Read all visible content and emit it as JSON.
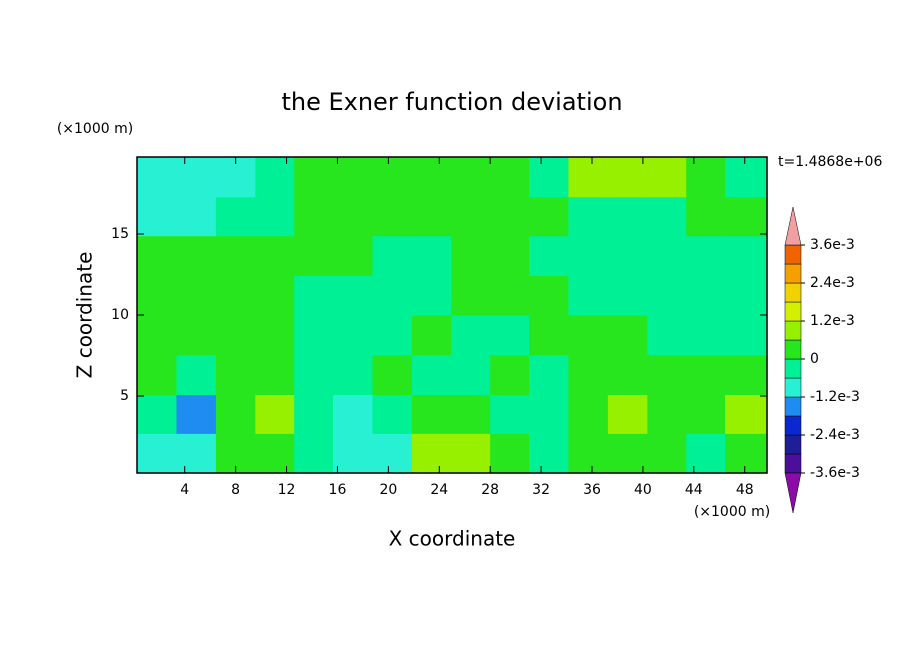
{
  "chart_data": {
    "type": "contour",
    "title": "the Exner function deviation",
    "x_label": "X coordinate",
    "y_label": "Z coordinate",
    "x_unit": "(×1000 m)",
    "y_unit": "(×1000 m)",
    "time_label": "t=1.4868e+06",
    "xlim": [
      0.25,
      49.75
    ],
    "ylim": [
      0.25,
      19.75
    ],
    "xticks": [
      4,
      8,
      12,
      16,
      20,
      24,
      28,
      32,
      36,
      40,
      44,
      48
    ],
    "yticks": [
      5,
      10,
      15
    ],
    "x": [
      1.8,
      4.9,
      8.0,
      11.1,
      14.1,
      17.2,
      20.3,
      23.4,
      26.5,
      29.5,
      32.6,
      35.7,
      38.8,
      41.9,
      44.9,
      48.0
    ],
    "y": [
      1.5,
      3.9,
      6.3,
      8.8,
      11.2,
      13.7,
      16.1,
      18.5
    ],
    "z": [
      [
        -0.0009,
        -0.0009,
        0.0003,
        0.0003,
        -0.0003,
        -0.0009,
        -0.0009,
        0.0009,
        0.0009,
        0.0003,
        -0.0003,
        0.0003,
        0.0003,
        0.0003,
        -0.0003,
        0.0003
      ],
      [
        -0.0003,
        -0.0015,
        0.0003,
        0.0009,
        -0.0003,
        -0.0009,
        -0.0003,
        0.0003,
        0.0003,
        -0.0003,
        -0.0003,
        0.0003,
        0.0009,
        0.0003,
        0.0003,
        0.0009
      ],
      [
        0.0003,
        -0.0003,
        0.0003,
        0.0003,
        -0.0003,
        -0.0003,
        0.0003,
        -0.0003,
        -0.0003,
        0.0003,
        -0.0003,
        0.0003,
        0.0003,
        0.0003,
        0.0003,
        0.0003
      ],
      [
        0.0003,
        0.0003,
        0.0003,
        0.0003,
        -0.0003,
        -0.0003,
        -0.0003,
        0.0003,
        -0.0003,
        -0.0003,
        0.0003,
        0.0003,
        0.0003,
        -0.0003,
        -0.0003,
        -0.0003
      ],
      [
        0.0003,
        0.0003,
        0.0003,
        0.0003,
        -0.0003,
        -0.0003,
        -0.0003,
        -0.0003,
        0.0003,
        0.0003,
        0.0003,
        -0.0003,
        -0.0003,
        -0.0003,
        -0.0003,
        -0.0003
      ],
      [
        0.0003,
        0.0003,
        0.0003,
        0.0003,
        0.0003,
        0.0003,
        -0.0003,
        -0.0003,
        0.0003,
        0.0003,
        -0.0003,
        -0.0003,
        -0.0003,
        -0.0003,
        -0.0003,
        -0.0003
      ],
      [
        -0.0009,
        -0.0009,
        -0.0003,
        -0.0003,
        0.0003,
        0.0003,
        0.0003,
        0.0003,
        0.0003,
        0.0003,
        0.0003,
        -0.0003,
        -0.0003,
        -0.0003,
        0.0003,
        0.0003
      ],
      [
        -0.0009,
        -0.0009,
        -0.0009,
        -0.0003,
        0.0003,
        0.0003,
        0.0003,
        0.0003,
        0.0003,
        0.0003,
        -0.0003,
        0.0009,
        0.0009,
        0.0009,
        0.0003,
        -0.0003
      ]
    ],
    "levels": [
      -0.0036,
      -0.003,
      -0.0024,
      -0.0018,
      -0.0012,
      -0.0006,
      0,
      0.0006,
      0.0012,
      0.0018,
      0.0024,
      0.003,
      0.0036
    ],
    "colors": [
      "#8c0aa8",
      "#4b0f9b",
      "#1e1e96",
      "#0a28d2",
      "#1e8cf0",
      "#28f0d2",
      "#00f096",
      "#28e61e",
      "#96f000",
      "#d2f000",
      "#f0d200",
      "#f5a000",
      "#f06400",
      "#f0a0a0"
    ],
    "cticks": [
      {
        "value": 0.0036,
        "label": "3.6e-3"
      },
      {
        "value": 0.0024,
        "label": "2.4e-3"
      },
      {
        "value": 0.0012,
        "label": "1.2e-3"
      },
      0,
      {
        "value": -0.0012,
        "label": "-1.2e-3"
      },
      {
        "value": -0.0024,
        "label": "-2.4e-3"
      },
      {
        "value": -0.0036,
        "label": "-3.6e-3"
      }
    ]
  }
}
